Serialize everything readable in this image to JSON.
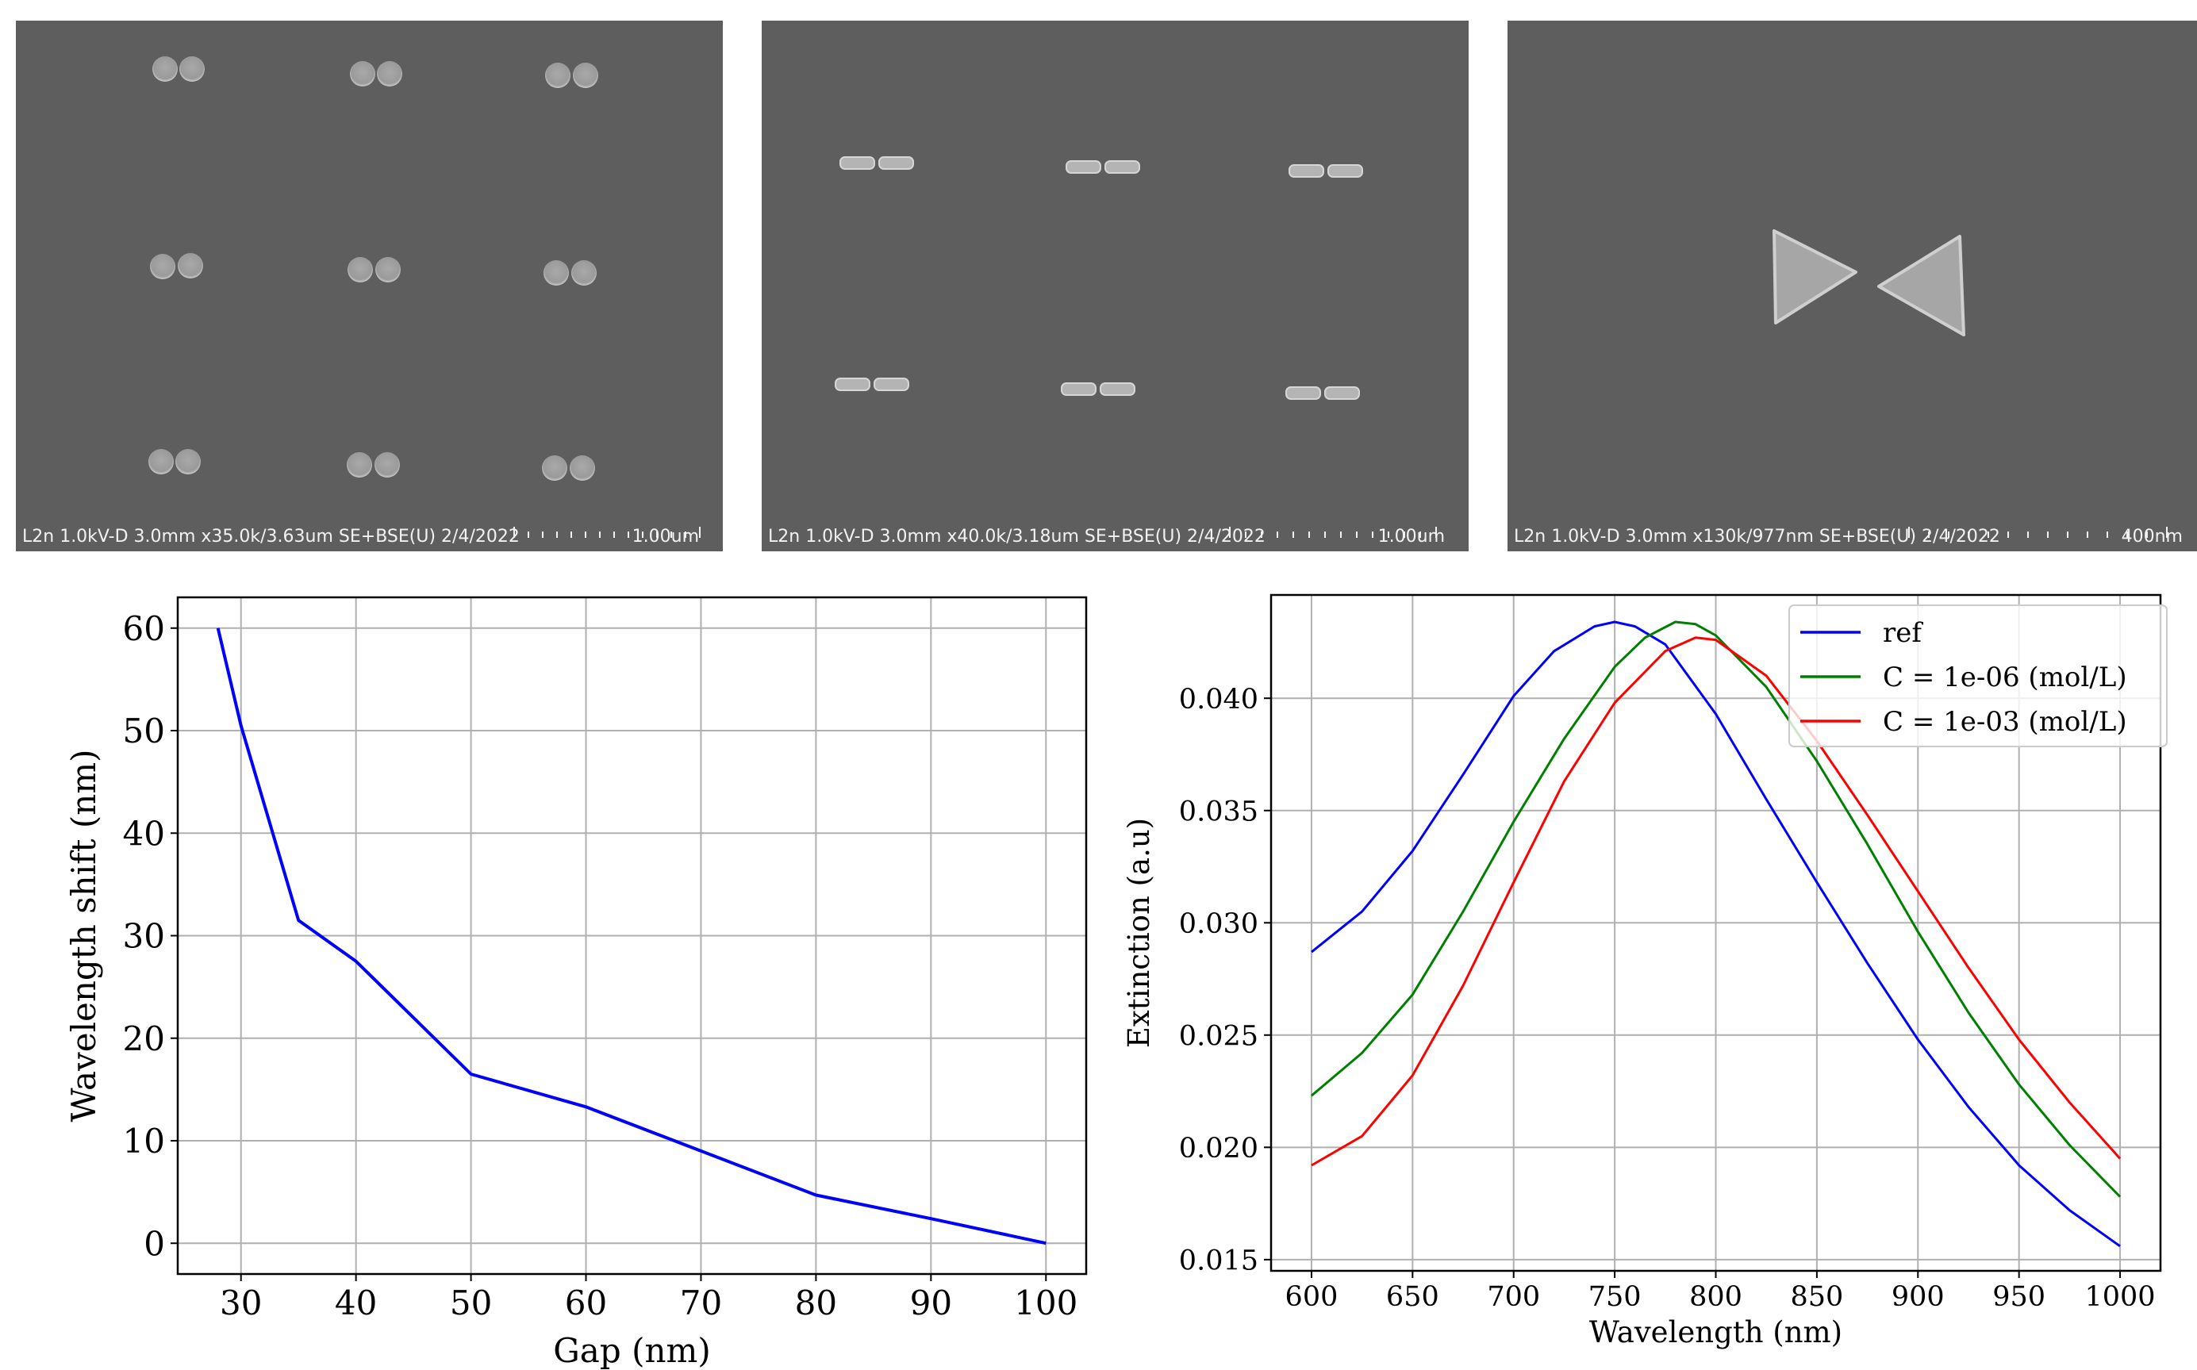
{
  "sem_images": [
    {
      "caption": "L2n 1.0kV-D 3.0mm x35.0k/3.63um SE+BSE(U) 2/4/2022",
      "scale": "1.00um"
    },
    {
      "caption": "L2n 1.0kV-D 3.0mm x40.0k/3.18um SE+BSE(U) 2/4/2022",
      "scale": "1.00um"
    },
    {
      "caption": "L2n 1.0kV-D 3.0mm x130k/977nm SE+BSE(U) 2/4/2022",
      "scale": "400nm"
    }
  ],
  "chart_data": [
    {
      "type": "line",
      "title": "",
      "xlabel": "Gap (nm)",
      "ylabel": "Wavelength shift (nm)",
      "xlim": [
        24.5,
        103.5
      ],
      "ylim": [
        -3,
        63
      ],
      "xticks": [
        30,
        40,
        50,
        60,
        70,
        80,
        90,
        100
      ],
      "yticks": [
        0,
        10,
        20,
        30,
        40,
        50,
        60
      ],
      "grid": true,
      "series": [
        {
          "color": "#0000ff",
          "x": [
            28,
            30,
            35,
            40,
            50,
            60,
            70,
            80,
            90,
            100
          ],
          "y": [
            60,
            50.5,
            31.5,
            27.5,
            16.5,
            13.3,
            9,
            4.7,
            2.4,
            0
          ]
        }
      ]
    },
    {
      "type": "line",
      "title": "",
      "xlabel": "Wavelength (nm)",
      "ylabel": "Extinction (a.u)",
      "xlim": [
        580,
        1020
      ],
      "ylim": [
        0.0145,
        0.0446
      ],
      "xticks": [
        600,
        650,
        700,
        750,
        800,
        850,
        900,
        950,
        1000
      ],
      "yticks": [
        0.015,
        0.02,
        0.025,
        0.03,
        0.035,
        0.04
      ],
      "ytick_labels": [
        "0.015",
        "0.020",
        "0.025",
        "0.030",
        "0.035",
        "0.040"
      ],
      "grid": true,
      "legend_position": "top-right",
      "series": [
        {
          "name": "ref",
          "color": "#0000ff",
          "x": [
            600,
            625,
            650,
            675,
            700,
            720,
            740,
            750,
            760,
            775,
            800,
            825,
            850,
            875,
            900,
            925,
            950,
            975,
            1000
          ],
          "y": [
            0.0287,
            0.0305,
            0.0332,
            0.0366,
            0.0401,
            0.0421,
            0.0432,
            0.0434,
            0.0432,
            0.0424,
            0.0393,
            0.0355,
            0.0318,
            0.0282,
            0.0248,
            0.0218,
            0.0192,
            0.0172,
            0.0156
          ]
        },
        {
          "name": "C = 1e-06 (mol/L)",
          "color": "#008000",
          "x": [
            600,
            625,
            650,
            675,
            700,
            725,
            750,
            765,
            780,
            790,
            800,
            825,
            850,
            875,
            900,
            925,
            950,
            975,
            1000
          ],
          "y": [
            0.0223,
            0.0242,
            0.0268,
            0.0305,
            0.0345,
            0.0382,
            0.0414,
            0.0427,
            0.0434,
            0.0433,
            0.0428,
            0.0405,
            0.0372,
            0.0335,
            0.0296,
            0.026,
            0.0228,
            0.0201,
            0.0178
          ]
        },
        {
          "name": "C = 1e-03 (mol/L)",
          "color": "#ff0000",
          "x": [
            600,
            625,
            650,
            675,
            700,
            725,
            750,
            775,
            790,
            800,
            825,
            850,
            875,
            900,
            925,
            950,
            975,
            1000
          ],
          "y": [
            0.0192,
            0.0205,
            0.0232,
            0.0272,
            0.0318,
            0.0363,
            0.0398,
            0.0421,
            0.0427,
            0.0426,
            0.041,
            0.0381,
            0.0348,
            0.0314,
            0.028,
            0.0248,
            0.022,
            0.0195
          ]
        }
      ]
    }
  ]
}
